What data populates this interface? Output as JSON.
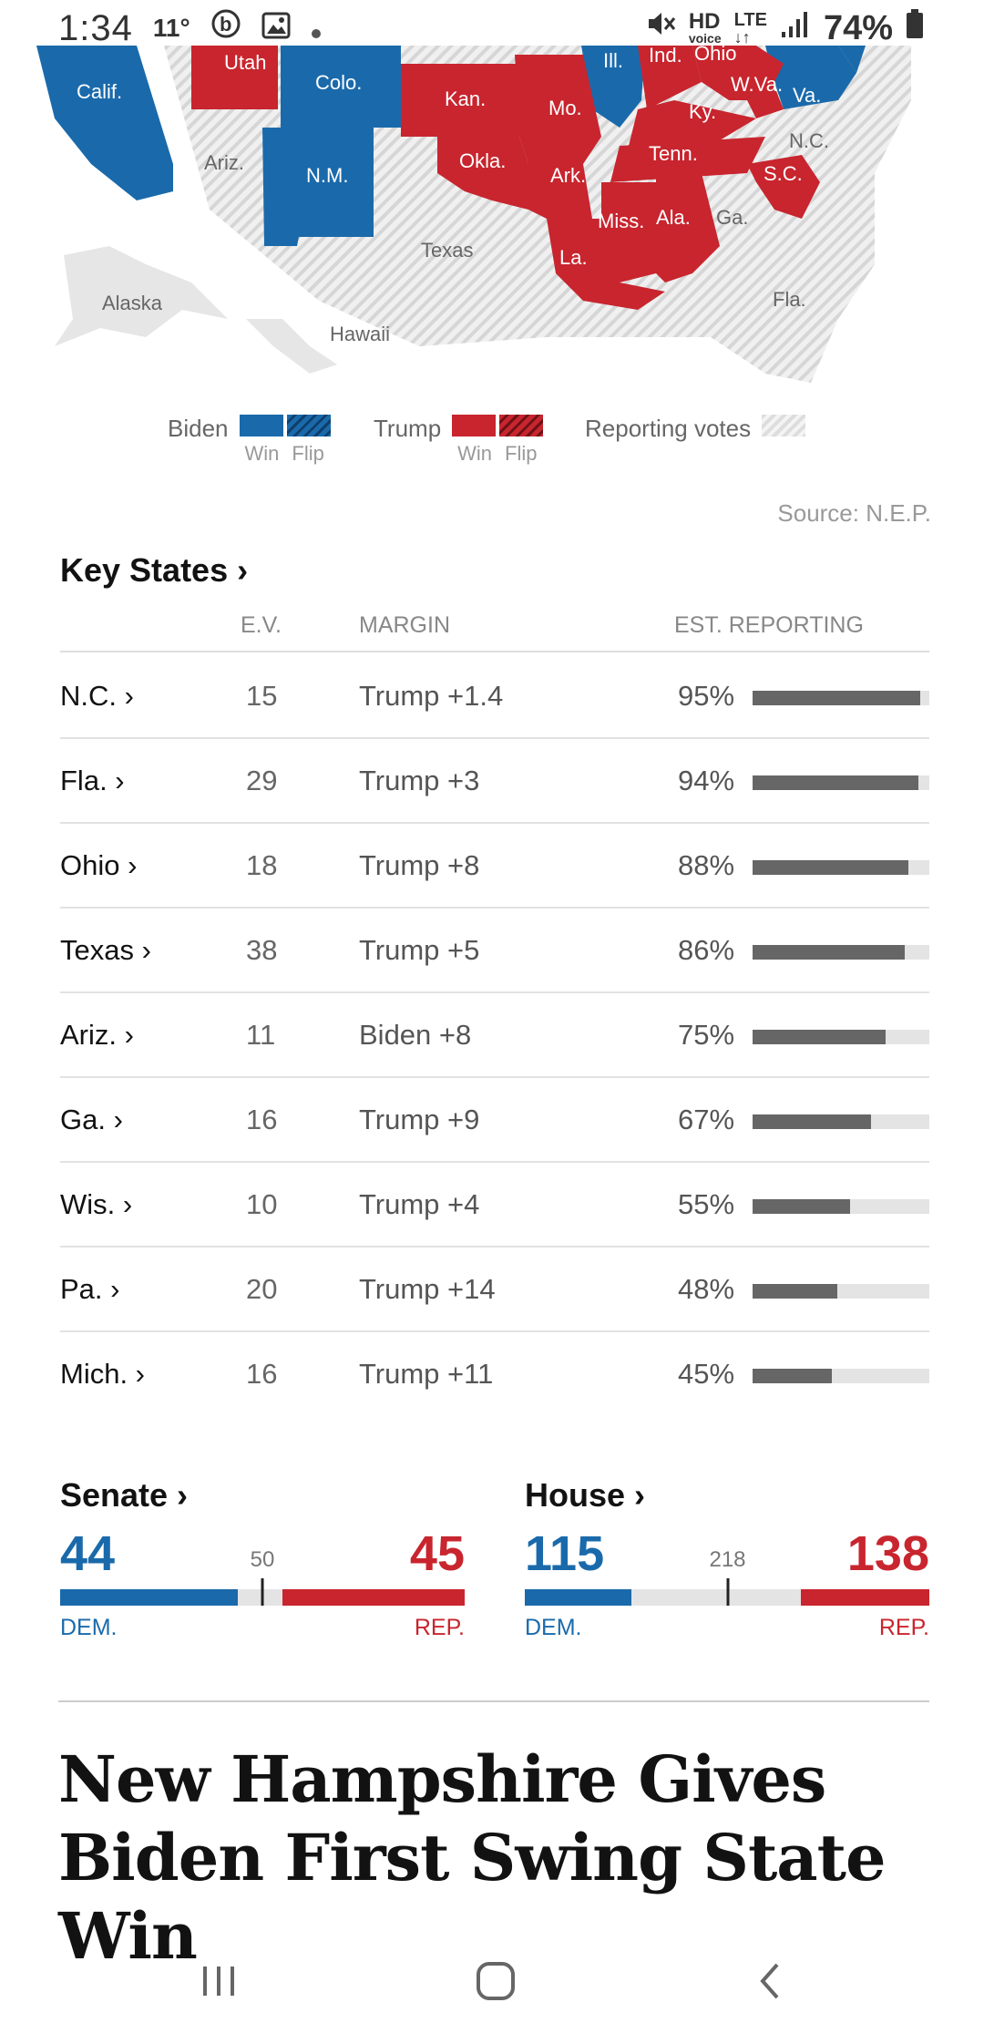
{
  "status_bar": {
    "time": "1:34",
    "notif": "11°",
    "battery": "74%",
    "hd_line1": "HD",
    "hd_line2": "voice",
    "lte_line1": "LTE",
    "lte_arrows": "↓↑"
  },
  "map": {
    "labels": [
      "Utah",
      "Colo.",
      "Calif.",
      "Kan.",
      "Mo.",
      "Ill.",
      "Ind.",
      "W.Va.",
      "Va.",
      "Ky.",
      "N.C.",
      "Ariz.",
      "N.M.",
      "Okla.",
      "Ark.",
      "Tenn.",
      "S.C.",
      "Miss.",
      "Ala.",
      "Ga.",
      "La.",
      "Texas",
      "Alaska",
      "Hawaii",
      "Fla.",
      "Ohio"
    ]
  },
  "legend": {
    "biden_label": "Biden",
    "trump_label": "Trump",
    "reporting_label": "Reporting votes",
    "win_label": "Win",
    "flip_label": "Flip",
    "colors": {
      "dem": "#1a6aab",
      "rep": "#c8252e"
    }
  },
  "source": "Source: N.E.P.",
  "key_states": {
    "title": "Key States ›",
    "headers": {
      "ev": "E.V.",
      "margin": "MARGIN",
      "reporting": "EST. REPORTING"
    },
    "rows": [
      {
        "state": "N.C. ›",
        "ev": "15",
        "margin": "Trump +1.4",
        "pct": "95%",
        "reported": 95
      },
      {
        "state": "Fla. ›",
        "ev": "29",
        "margin": "Trump +3",
        "pct": "94%",
        "reported": 94
      },
      {
        "state": "Ohio ›",
        "ev": "18",
        "margin": "Trump +8",
        "pct": "88%",
        "reported": 88
      },
      {
        "state": "Texas ›",
        "ev": "38",
        "margin": "Trump +5",
        "pct": "86%",
        "reported": 86
      },
      {
        "state": "Ariz. ›",
        "ev": "11",
        "margin": "Biden +8",
        "pct": "75%",
        "reported": 75
      },
      {
        "state": "Ga. ›",
        "ev": "16",
        "margin": "Trump +9",
        "pct": "67%",
        "reported": 67
      },
      {
        "state": "Wis. ›",
        "ev": "10",
        "margin": "Trump +4",
        "pct": "55%",
        "reported": 55
      },
      {
        "state": "Pa. ›",
        "ev": "20",
        "margin": "Trump +14",
        "pct": "48%",
        "reported": 48
      },
      {
        "state": "Mich. ›",
        "ev": "16",
        "margin": "Trump +11",
        "pct": "45%",
        "reported": 45
      }
    ]
  },
  "senate": {
    "title": "Senate ›",
    "dem": "44",
    "rep": "45",
    "majority": "50",
    "dem_label": "DEM.",
    "rep_label": "REP.",
    "dem_seats": 44,
    "rep_seats": 45,
    "total_seats": 100,
    "majority_seats": 50
  },
  "house": {
    "title": "House ›",
    "dem": "115",
    "rep": "138",
    "majority": "218",
    "dem_label": "DEM.",
    "rep_label": "REP.",
    "dem_seats": 115,
    "rep_seats": 138,
    "total_seats": 435,
    "majority_seats": 218
  },
  "headline": "New Hampshire Gives Biden First Swing State Win"
}
